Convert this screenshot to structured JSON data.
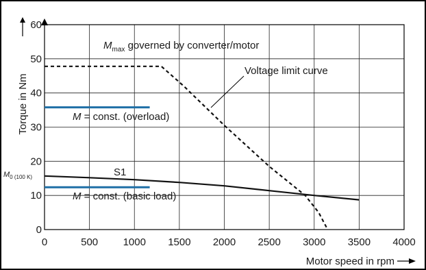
{
  "chart_data": {
    "type": "line",
    "xlabel": "Motor speed in rpm",
    "ylabel": "Torque in Nm",
    "xlim": [
      0,
      4000
    ],
    "ylim": [
      0,
      60
    ],
    "x_ticks": [
      "0",
      "500",
      "1000",
      "1500",
      "2000",
      "2500",
      "3000",
      "3500",
      "4000"
    ],
    "y_ticks": [
      "0",
      "10",
      "20",
      "30",
      "40",
      "50",
      "60"
    ],
    "grid": true,
    "colors": {
      "curve": "#111111",
      "constant": "#1f6fa6",
      "frame": "#000000"
    },
    "y_marker": {
      "label_main": "M",
      "label_sub": "0 (100 K)",
      "value": 15.7
    },
    "series": [
      {
        "name": "Mmax governed by converter/motor",
        "style": "dashed",
        "x": [
          0,
          1300,
          1550,
          2000,
          2500,
          2900,
          3050,
          3150
        ],
        "y": [
          47.8,
          47.8,
          42,
          30.5,
          18.5,
          10,
          5,
          0
        ]
      },
      {
        "name": "S1",
        "style": "solid",
        "x": [
          0,
          500,
          1000,
          1500,
          2000,
          2500,
          3000,
          3500
        ],
        "y": [
          15.7,
          15.2,
          14.6,
          13.8,
          12.8,
          11.4,
          10,
          8.7
        ]
      },
      {
        "name": "M = const. (overload)",
        "style": "solid-blue",
        "x": [
          0,
          1170
        ],
        "y": [
          35.8,
          35.8
        ]
      },
      {
        "name": "M = const. (basic load)",
        "style": "solid-blue",
        "x": [
          0,
          1170
        ],
        "y": [
          12.4,
          12.4
        ]
      }
    ],
    "annotations": {
      "mmax_main": "M",
      "mmax_sub": "max",
      "mmax_rest": " governed by converter/motor",
      "voltage_limit": "Voltage limit curve",
      "overload_m": "M",
      "overload_rest": " = const. (overload)",
      "s1": "S1",
      "basic_m": "M",
      "basic_rest": " = const. (basic load)"
    }
  }
}
